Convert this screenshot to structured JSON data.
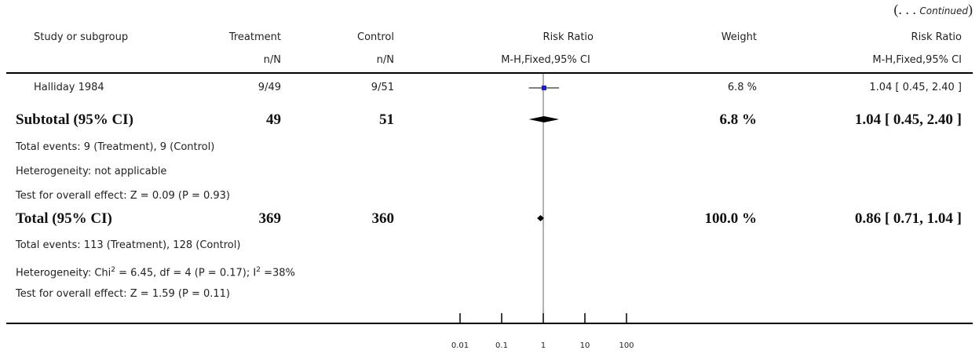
{
  "continued_label": "(. . . Continued)",
  "headers": {
    "study": "Study or subgroup",
    "treatment": "Treatment",
    "treatment_sub": "n/N",
    "control": "Control",
    "control_sub": "n/N",
    "rr": "Risk Ratio",
    "rr_sub": "M-H,Fixed,95% CI",
    "weight": "Weight",
    "rr2": "Risk Ratio",
    "rr2_sub": "M-H,Fixed,95% CI"
  },
  "study_row": {
    "name": "Halliday 1984",
    "treatment": "9/49",
    "control": "9/51",
    "weight": "6.8 %",
    "ci": "1.04 [ 0.45, 2.40 ]"
  },
  "subtotal": {
    "label": "Subtotal (95% CI)",
    "treatment": "49",
    "control": "51",
    "weight": "6.8 %",
    "ci": "1.04 [ 0.45, 2.40 ]",
    "events": "Total events: 9 (Treatment), 9 (Control)",
    "heterogeneity": "Heterogeneity: not applicable",
    "test": "Test for overall effect: Z = 0.09 (P = 0.93)"
  },
  "total": {
    "label": "Total (95% CI)",
    "treatment": "369",
    "control": "360",
    "weight": "100.0 %",
    "ci": "0.86 [ 0.71, 1.04 ]",
    "events": "Total events: 113 (Treatment), 128 (Control)",
    "heterogeneity_prefix": "Heterogeneity: Chi",
    "heterogeneity_mid": " = 6.45, df = 4 (P = 0.17); I",
    "heterogeneity_suffix": " =38%",
    "superscript": "2",
    "test": "Test for overall effect: Z = 1.59 (P = 0.11)"
  },
  "chart_data": {
    "type": "forest",
    "scale": "log",
    "x_ticks": [
      0.01,
      0.1,
      1,
      10,
      100
    ],
    "x_tick_labels": [
      "0.01",
      "0.1",
      "1",
      "10",
      "100"
    ],
    "reference_line": 1,
    "studies": [
      {
        "name": "Halliday 1984",
        "estimate": 1.04,
        "lower": 0.45,
        "upper": 2.4,
        "weight": 6.8
      }
    ],
    "pooled": [
      {
        "name": "Subtotal (95% CI)",
        "estimate": 1.04,
        "lower": 0.45,
        "upper": 2.4
      },
      {
        "name": "Total (95% CI)",
        "estimate": 0.86,
        "lower": 0.71,
        "upper": 1.04
      }
    ],
    "colors": {
      "study_marker": "#1f1fbf",
      "lines": "#000000",
      "reference": "#666666"
    }
  }
}
